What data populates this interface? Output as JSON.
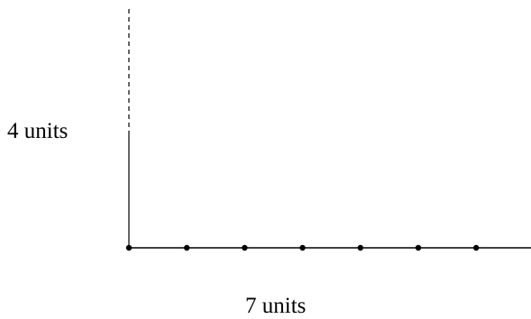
{
  "diagram": {
    "vertical_label": "4 units",
    "horizontal_label": "7 units",
    "horizontal_units": 7,
    "vertical_units": 4,
    "colors": {
      "stroke": "#000000",
      "background": "#ffffff"
    }
  }
}
